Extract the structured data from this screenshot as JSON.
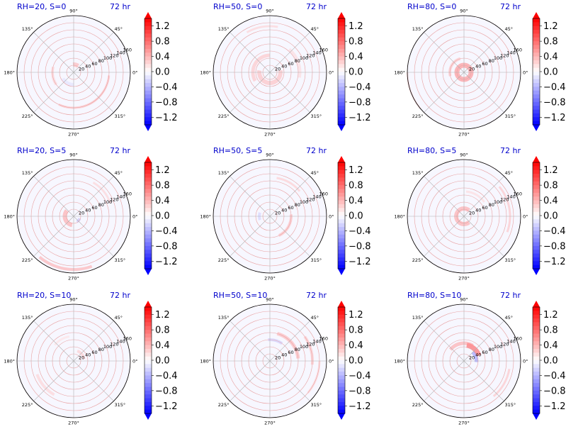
{
  "chart_data": {
    "type": "polar-contour-grid",
    "time_label": "72 hr",
    "radial_ticks": [
      20,
      40,
      60,
      80,
      100,
      120,
      140,
      160
    ],
    "radial_max": 160,
    "angle_ticks": [
      "0°",
      "45°",
      "90°",
      "135°",
      "180°",
      "225°",
      "270°",
      "315°"
    ],
    "colorbar": {
      "ticks": [
        "1.2",
        "0.8",
        "0.4",
        "0.0",
        "−0.4",
        "−0.8",
        "−1.2"
      ],
      "colormap": "bwr",
      "range": [
        -1.4,
        1.4
      ]
    },
    "colors": {
      "positive": "#ff0000",
      "negative": "#0000ff",
      "title": "#0000cc"
    },
    "panels": [
      {
        "label": "RH=20, S=0",
        "features": [
          {
            "r": 22,
            "theta": 75,
            "dr": 12,
            "dt": 40,
            "v": 0.5
          },
          {
            "r": 100,
            "theta": 300,
            "dr": 6,
            "dt": 110,
            "v": 0.45
          },
          {
            "r": 60,
            "theta": 190,
            "dr": 8,
            "dt": 50,
            "v": 0.3
          },
          {
            "r": 35,
            "theta": 240,
            "dr": 10,
            "dt": 60,
            "v": -0.2
          }
        ]
      },
      {
        "label": "RH=50, S=0",
        "features": [
          {
            "r": 30,
            "theta": 270,
            "dr": 12,
            "dt": 200,
            "v": 0.45
          },
          {
            "r": 48,
            "theta": 150,
            "dr": 10,
            "dt": 120,
            "v": 0.4
          },
          {
            "r": 85,
            "theta": 20,
            "dr": 8,
            "dt": 60,
            "v": 0.25
          },
          {
            "r": 130,
            "theta": 100,
            "dr": 6,
            "dt": 40,
            "v": 0.3
          }
        ]
      },
      {
        "label": "RH=80, S=0",
        "features": [
          {
            "r": 20,
            "theta": 0,
            "dr": 14,
            "dt": 360,
            "v": 0.7
          },
          {
            "r": 40,
            "theta": 150,
            "dr": 8,
            "dt": 90,
            "v": 0.4
          },
          {
            "r": 160,
            "theta": 200,
            "dr": 6,
            "dt": 40,
            "v": 0.2
          }
        ]
      },
      {
        "label": "RH=20, S=5",
        "features": [
          {
            "r": 25,
            "theta": 200,
            "dr": 12,
            "dt": 120,
            "v": 0.6
          },
          {
            "r": 150,
            "theta": 260,
            "dr": 8,
            "dt": 60,
            "v": 0.55
          },
          {
            "r": 110,
            "theta": 40,
            "dr": 6,
            "dt": 40,
            "v": 0.3
          },
          {
            "r": 18,
            "theta": 320,
            "dr": 8,
            "dt": 40,
            "v": -0.4
          }
        ]
      },
      {
        "label": "RH=50, S=5",
        "features": [
          {
            "r": 60,
            "theta": 330,
            "dr": 8,
            "dt": 70,
            "v": 0.45
          },
          {
            "r": 110,
            "theta": 60,
            "dr": 6,
            "dt": 40,
            "v": 0.35
          },
          {
            "r": 30,
            "theta": 180,
            "dr": 8,
            "dt": 40,
            "v": -0.3
          }
        ]
      },
      {
        "label": "RH=80, S=5",
        "features": [
          {
            "r": 22,
            "theta": 180,
            "dr": 12,
            "dt": 260,
            "v": 0.6
          },
          {
            "r": 130,
            "theta": 10,
            "dr": 6,
            "dt": 60,
            "v": 0.4
          },
          {
            "r": 70,
            "theta": 60,
            "dr": 6,
            "dt": 50,
            "v": 0.25
          }
        ]
      },
      {
        "label": "RH=20, S=10",
        "features": [
          {
            "r": 30,
            "theta": 40,
            "dr": 8,
            "dt": 60,
            "v": 0.35
          },
          {
            "r": 110,
            "theta": 220,
            "dr": 8,
            "dt": 40,
            "v": 0.3
          },
          {
            "r": 70,
            "theta": 120,
            "dr": 6,
            "dt": 40,
            "v": 0.2
          }
        ]
      },
      {
        "label": "RH=50, S=10",
        "features": [
          {
            "r": 80,
            "theta": 40,
            "dr": 10,
            "dt": 70,
            "v": 0.5
          },
          {
            "r": 120,
            "theta": 15,
            "dr": 8,
            "dt": 40,
            "v": 0.4
          },
          {
            "r": 60,
            "theta": 75,
            "dr": 8,
            "dt": 40,
            "v": -0.35
          },
          {
            "r": 140,
            "theta": 340,
            "dr": 6,
            "dt": 40,
            "v": 0.3
          }
        ]
      },
      {
        "label": "RH=80, S=10",
        "features": [
          {
            "r": 45,
            "theta": 50,
            "dr": 14,
            "dt": 60,
            "v": 1.1
          },
          {
            "r": 50,
            "theta": 100,
            "dr": 10,
            "dt": 80,
            "v": 0.6
          },
          {
            "r": 35,
            "theta": 20,
            "dr": 10,
            "dt": 50,
            "v": -0.7
          },
          {
            "r": 130,
            "theta": 330,
            "dr": 6,
            "dt": 40,
            "v": 0.4
          }
        ]
      }
    ]
  }
}
